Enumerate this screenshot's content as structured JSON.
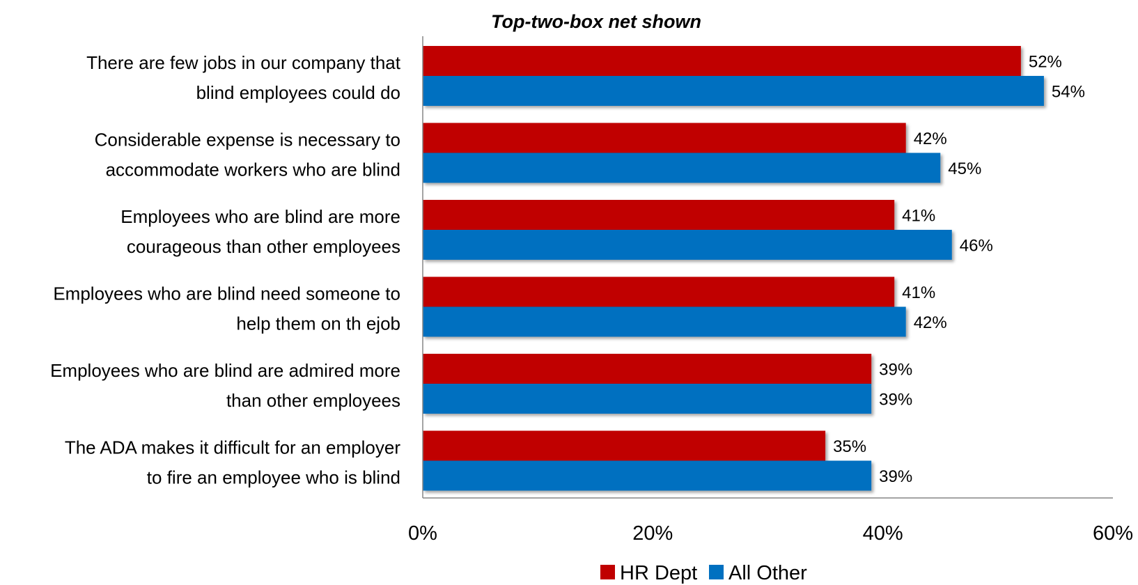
{
  "chart_data": {
    "type": "bar",
    "orientation": "horizontal",
    "title": "Top-two-box net shown",
    "categories": [
      "There are few jobs in our company that blind employees could do",
      "Considerable expense is necessary to accommodate workers who are blind",
      "Employees who are blind are more courageous than other employees",
      "Employees who are blind need someone to help them on th ejob",
      "Employees who are blind are admired more than other employees",
      "The ADA makes it difficult for an employer to fire an employee who is blind"
    ],
    "category_lines": [
      [
        "There are few jobs in our company that",
        "blind employees could do"
      ],
      [
        "Considerable expense is necessary to",
        "accommodate workers who are blind"
      ],
      [
        "Employees who are blind are more",
        "courageous than other employees"
      ],
      [
        "Employees who are blind need someone to",
        "help them on th ejob"
      ],
      [
        "Employees who are blind are admired more",
        "than other employees"
      ],
      [
        "The ADA makes it difficult for an employer",
        "to fire an employee who is blind"
      ]
    ],
    "series": [
      {
        "name": "HR Dept",
        "color": "#C00000",
        "values": [
          52,
          42,
          41,
          41,
          39,
          35
        ],
        "labels": [
          "52%",
          "42%",
          "41%",
          "41%",
          "39%",
          "35%"
        ]
      },
      {
        "name": "All Other",
        "color": "#0070C0",
        "values": [
          54,
          45,
          46,
          42,
          39,
          39
        ],
        "labels": [
          "54%",
          "45%",
          "46%",
          "42%",
          "39%",
          "39%"
        ]
      }
    ],
    "xlim": [
      0,
      60
    ],
    "xticks": [
      0,
      20,
      40,
      60
    ],
    "xtick_labels": [
      "0%",
      "20%",
      "40%",
      "60%"
    ],
    "xlabel": "",
    "ylabel": "",
    "grid": false,
    "legend_position": "bottom"
  }
}
